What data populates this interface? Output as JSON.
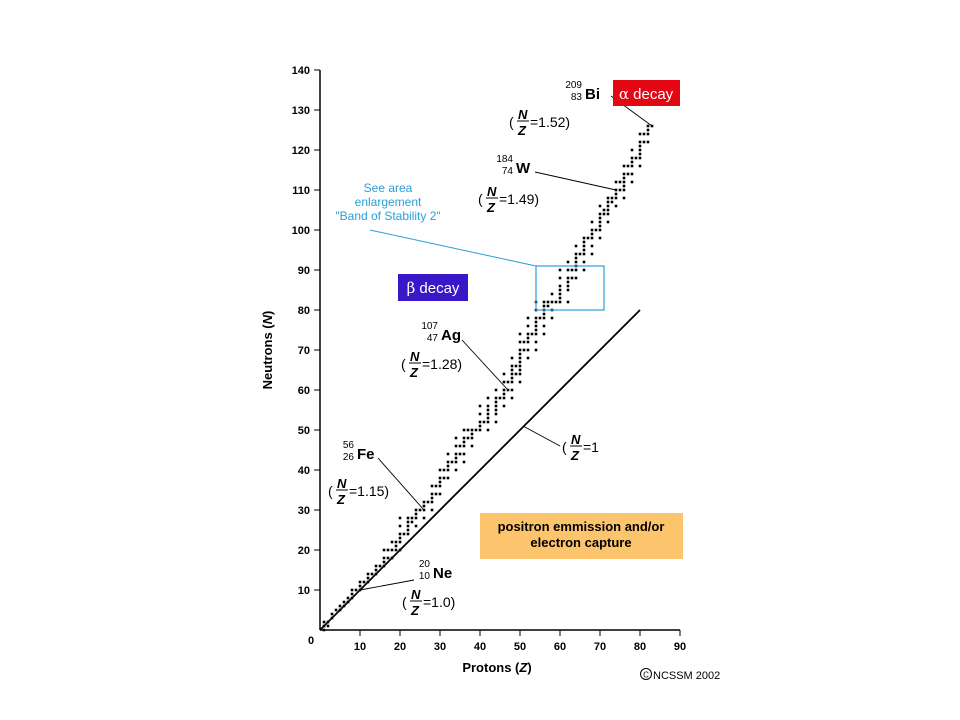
{
  "chart_data": {
    "type": "scatter",
    "title": "",
    "xlabel": "Protons",
    "xlabel_var": "Z",
    "ylabel": "Neutrons",
    "ylabel_var": "N",
    "xlim": [
      0,
      90
    ],
    "ylim": [
      0,
      140
    ],
    "x_ticks": [
      0,
      10,
      20,
      30,
      40,
      50,
      60,
      70,
      80,
      90
    ],
    "y_ticks": [
      10,
      20,
      30,
      40,
      50,
      60,
      70,
      80,
      90,
      100,
      110,
      120,
      130,
      140
    ],
    "grid": false,
    "reference_line": {
      "x": [
        0,
        80
      ],
      "y": [
        0,
        80
      ],
      "label": "=1"
    },
    "stability_band": [
      {
        "z": 1,
        "n": [
          0,
          1,
          2
        ]
      },
      {
        "z": 2,
        "n": [
          1,
          2
        ]
      },
      {
        "z": 3,
        "n": [
          3,
          4
        ]
      },
      {
        "z": 4,
        "n": [
          5
        ]
      },
      {
        "z": 5,
        "n": [
          5,
          6
        ]
      },
      {
        "z": 6,
        "n": [
          6,
          7
        ]
      },
      {
        "z": 7,
        "n": [
          7,
          8
        ]
      },
      {
        "z": 8,
        "n": [
          8,
          9,
          10
        ]
      },
      {
        "z": 9,
        "n": [
          10
        ]
      },
      {
        "z": 10,
        "n": [
          10,
          11,
          12
        ]
      },
      {
        "z": 11,
        "n": [
          12
        ]
      },
      {
        "z": 12,
        "n": [
          12,
          13,
          14
        ]
      },
      {
        "z": 13,
        "n": [
          14
        ]
      },
      {
        "z": 14,
        "n": [
          14,
          15,
          16
        ]
      },
      {
        "z": 15,
        "n": [
          16
        ]
      },
      {
        "z": 16,
        "n": [
          16,
          17,
          18,
          20
        ]
      },
      {
        "z": 17,
        "n": [
          18,
          20
        ]
      },
      {
        "z": 18,
        "n": [
          18,
          20,
          22
        ]
      },
      {
        "z": 19,
        "n": [
          20,
          21,
          22
        ]
      },
      {
        "z": 20,
        "n": [
          20,
          22,
          23,
          24,
          26,
          28
        ]
      },
      {
        "z": 21,
        "n": [
          24
        ]
      },
      {
        "z": 22,
        "n": [
          24,
          25,
          26,
          27,
          28
        ]
      },
      {
        "z": 23,
        "n": [
          27,
          28
        ]
      },
      {
        "z": 24,
        "n": [
          26,
          28,
          29,
          30
        ]
      },
      {
        "z": 25,
        "n": [
          30
        ]
      },
      {
        "z": 26,
        "n": [
          28,
          30,
          31,
          32
        ]
      },
      {
        "z": 27,
        "n": [
          32
        ]
      },
      {
        "z": 28,
        "n": [
          30,
          32,
          33,
          34,
          36
        ]
      },
      {
        "z": 29,
        "n": [
          34,
          36
        ]
      },
      {
        "z": 30,
        "n": [
          34,
          36,
          37,
          38,
          40
        ]
      },
      {
        "z": 31,
        "n": [
          38,
          40
        ]
      },
      {
        "z": 32,
        "n": [
          38,
          40,
          41,
          42,
          44
        ]
      },
      {
        "z": 33,
        "n": [
          42
        ]
      },
      {
        "z": 34,
        "n": [
          40,
          42,
          43,
          44,
          46,
          48
        ]
      },
      {
        "z": 35,
        "n": [
          44,
          46
        ]
      },
      {
        "z": 36,
        "n": [
          42,
          44,
          46,
          47,
          48,
          50
        ]
      },
      {
        "z": 37,
        "n": [
          48,
          50
        ]
      },
      {
        "z": 38,
        "n": [
          46,
          48,
          49,
          50
        ]
      },
      {
        "z": 39,
        "n": [
          50
        ]
      },
      {
        "z": 40,
        "n": [
          50,
          51,
          52,
          54,
          56
        ]
      },
      {
        "z": 41,
        "n": [
          52
        ]
      },
      {
        "z": 42,
        "n": [
          50,
          52,
          53,
          54,
          55,
          56,
          58
        ]
      },
      {
        "z": 44,
        "n": [
          52,
          54,
          55,
          56,
          57,
          58,
          60
        ]
      },
      {
        "z": 45,
        "n": [
          58
        ]
      },
      {
        "z": 46,
        "n": [
          56,
          58,
          59,
          60,
          62,
          64
        ]
      },
      {
        "z": 47,
        "n": [
          60,
          62
        ]
      },
      {
        "z": 48,
        "n": [
          58,
          60,
          62,
          63,
          64,
          65,
          66,
          68
        ]
      },
      {
        "z": 49,
        "n": [
          64,
          66
        ]
      },
      {
        "z": 50,
        "n": [
          62,
          64,
          65,
          66,
          67,
          68,
          69,
          70,
          72,
          74
        ]
      },
      {
        "z": 51,
        "n": [
          70,
          72
        ]
      },
      {
        "z": 52,
        "n": [
          68,
          70,
          72,
          73,
          74,
          76,
          78
        ]
      },
      {
        "z": 53,
        "n": [
          74
        ]
      },
      {
        "z": 54,
        "n": [
          70,
          72,
          74,
          75,
          76,
          77,
          78,
          80,
          82
        ]
      },
      {
        "z": 55,
        "n": [
          78
        ]
      },
      {
        "z": 56,
        "n": [
          74,
          76,
          78,
          79,
          80,
          81,
          82
        ]
      },
      {
        "z": 57,
        "n": [
          81,
          82
        ]
      },
      {
        "z": 58,
        "n": [
          78,
          80,
          82,
          84
        ]
      },
      {
        "z": 59,
        "n": [
          82
        ]
      },
      {
        "z": 60,
        "n": [
          82,
          83,
          84,
          85,
          86,
          88,
          90
        ]
      },
      {
        "z": 62,
        "n": [
          82,
          85,
          86,
          87,
          88,
          90,
          92
        ]
      },
      {
        "z": 63,
        "n": [
          88,
          90
        ]
      },
      {
        "z": 64,
        "n": [
          88,
          90,
          91,
          92,
          93,
          94,
          96
        ]
      },
      {
        "z": 65,
        "n": [
          94
        ]
      },
      {
        "z": 66,
        "n": [
          90,
          92,
          94,
          95,
          96,
          97,
          98
        ]
      },
      {
        "z": 67,
        "n": [
          98
        ]
      },
      {
        "z": 68,
        "n": [
          94,
          96,
          98,
          99,
          100,
          102
        ]
      },
      {
        "z": 69,
        "n": [
          100
        ]
      },
      {
        "z": 70,
        "n": [
          98,
          100,
          101,
          102,
          103,
          104,
          106
        ]
      },
      {
        "z": 71,
        "n": [
          104,
          105
        ]
      },
      {
        "z": 72,
        "n": [
          102,
          104,
          105,
          106,
          107,
          108
        ]
      },
      {
        "z": 73,
        "n": [
          107,
          108
        ]
      },
      {
        "z": 74,
        "n": [
          106,
          108,
          109,
          110,
          112
        ]
      },
      {
        "z": 75,
        "n": [
          110,
          112
        ]
      },
      {
        "z": 76,
        "n": [
          108,
          110,
          111,
          112,
          113,
          114,
          116
        ]
      },
      {
        "z": 77,
        "n": [
          114,
          116
        ]
      },
      {
        "z": 78,
        "n": [
          112,
          114,
          116,
          117,
          118,
          120
        ]
      },
      {
        "z": 79,
        "n": [
          118
        ]
      },
      {
        "z": 80,
        "n": [
          116,
          118,
          119,
          120,
          121,
          122,
          124
        ]
      },
      {
        "z": 81,
        "n": [
          122,
          124
        ]
      },
      {
        "z": 82,
        "n": [
          122,
          124,
          125,
          126
        ]
      },
      {
        "z": 83,
        "n": [
          126
        ]
      }
    ],
    "nuclide_labels": [
      {
        "mass": "20",
        "atomic": "10",
        "symbol": "Ne",
        "ratio": "=1.0)",
        "z": 10,
        "n": 10
      },
      {
        "mass": "56",
        "atomic": "26",
        "symbol": "Fe",
        "ratio": "=1.15)",
        "z": 26,
        "n": 30
      },
      {
        "mass": "107",
        "atomic": "47",
        "symbol": "Ag",
        "ratio": "=1.28)",
        "z": 47,
        "n": 60
      },
      {
        "mass": "184",
        "atomic": "74",
        "symbol": "W",
        "ratio": "=1.49)",
        "z": 74,
        "n": 110
      },
      {
        "mass": "209",
        "atomic": "83",
        "symbol": "Bi",
        "ratio": "=1.52)",
        "z": 83,
        "n": 126
      }
    ],
    "enlargement_box": {
      "z_range": [
        54,
        71
      ],
      "n_range": [
        80,
        91
      ],
      "text": [
        "See area",
        "enlargement",
        "\"Band of Stability 2\""
      ]
    },
    "annotations": {
      "alpha_decay": {
        "greek": "α",
        "text": "decay"
      },
      "beta_decay": {
        "greek": "β",
        "text": "decay"
      },
      "positron": [
        "positron emmission and/or",
        "electron capture"
      ]
    },
    "ratio_fraction": {
      "num": "N",
      "den": "Z"
    },
    "copyright": "NCSSM 2002",
    "colors": {
      "alpha_box": "#e30613",
      "beta_box": "#3a18c8",
      "positron_box": "#fdc46e",
      "enlargement_line": "#2a9fd8",
      "enlargement_text": "#2a9fd8"
    }
  }
}
